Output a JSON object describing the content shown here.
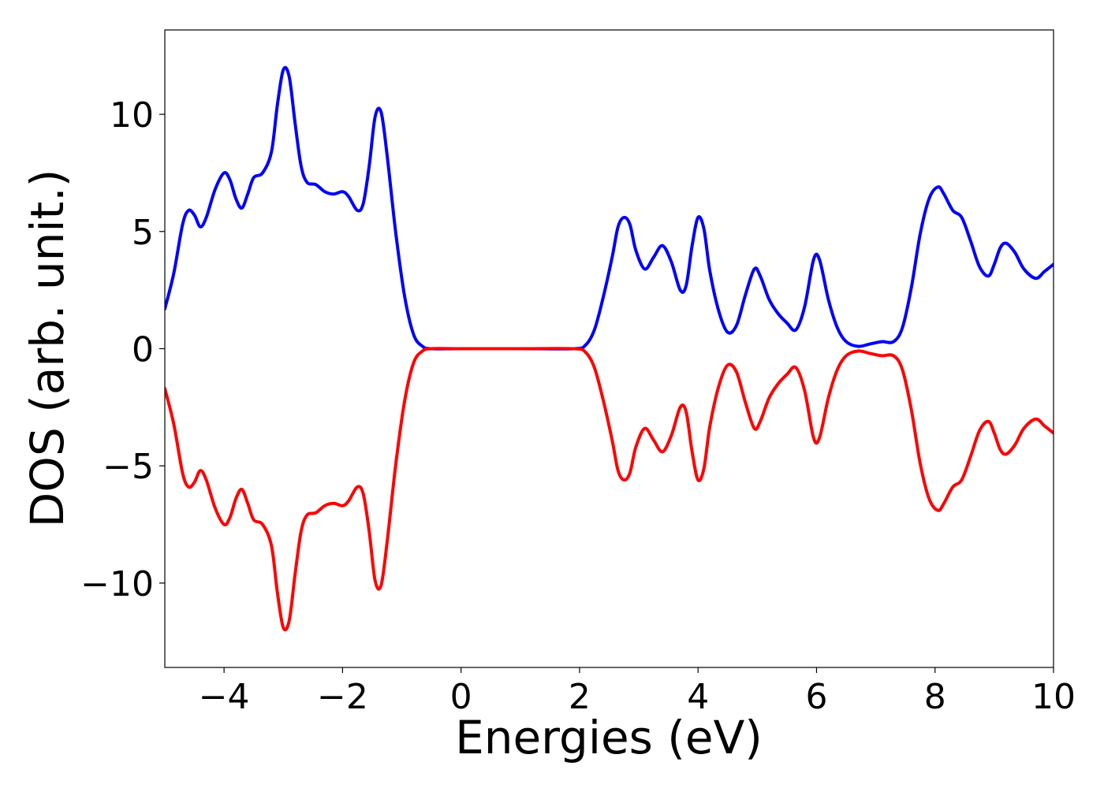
{
  "chart_data": {
    "type": "line",
    "title": "",
    "xlabel": "Energies (eV)",
    "ylabel": "DOS (arb. unit.)",
    "xlim": [
      -5,
      10
    ],
    "ylim": [
      -13.6,
      13.6
    ],
    "xticks": [
      -4,
      -2,
      0,
      2,
      4,
      6,
      8,
      10
    ],
    "xtick_labels": [
      "−4",
      "−2",
      "0",
      "2",
      "4",
      "6",
      "8",
      "10"
    ],
    "yticks": [
      -10,
      -5,
      0,
      5,
      10
    ],
    "ytick_labels": [
      "−10",
      "−5",
      "0",
      "5",
      "10"
    ],
    "grid": false,
    "legend": "none",
    "series": [
      {
        "color": "#0000ff",
        "points": [
          [
            -5.0,
            1.7
          ],
          [
            -4.85,
            3.2
          ],
          [
            -4.7,
            5.3
          ],
          [
            -4.6,
            5.9
          ],
          [
            -4.5,
            5.7
          ],
          [
            -4.4,
            5.2
          ],
          [
            -4.3,
            5.6
          ],
          [
            -4.15,
            6.8
          ],
          [
            -4.0,
            7.5
          ],
          [
            -3.9,
            7.2
          ],
          [
            -3.8,
            6.4
          ],
          [
            -3.7,
            6.0
          ],
          [
            -3.6,
            6.6
          ],
          [
            -3.5,
            7.3
          ],
          [
            -3.35,
            7.5
          ],
          [
            -3.2,
            8.4
          ],
          [
            -3.1,
            10.4
          ],
          [
            -3.0,
            11.9
          ],
          [
            -2.9,
            11.6
          ],
          [
            -2.8,
            9.6
          ],
          [
            -2.7,
            7.8
          ],
          [
            -2.6,
            7.1
          ],
          [
            -2.45,
            7.0
          ],
          [
            -2.3,
            6.7
          ],
          [
            -2.15,
            6.6
          ],
          [
            -2.0,
            6.7
          ],
          [
            -1.9,
            6.5
          ],
          [
            -1.75,
            5.9
          ],
          [
            -1.65,
            6.2
          ],
          [
            -1.55,
            7.8
          ],
          [
            -1.45,
            9.9
          ],
          [
            -1.35,
            10.1
          ],
          [
            -1.25,
            8.3
          ],
          [
            -1.1,
            4.9
          ],
          [
            -0.95,
            2.2
          ],
          [
            -0.8,
            0.6
          ],
          [
            -0.65,
            0.1
          ],
          [
            -0.5,
            0.0
          ],
          [
            0.0,
            0.0
          ],
          [
            1.0,
            0.0
          ],
          [
            1.9,
            0.0
          ],
          [
            2.1,
            0.15
          ],
          [
            2.25,
            0.8
          ],
          [
            2.4,
            2.2
          ],
          [
            2.55,
            3.9
          ],
          [
            2.65,
            5.2
          ],
          [
            2.75,
            5.6
          ],
          [
            2.85,
            5.3
          ],
          [
            2.95,
            4.2
          ],
          [
            3.1,
            3.4
          ],
          [
            3.25,
            3.9
          ],
          [
            3.4,
            4.4
          ],
          [
            3.55,
            3.7
          ],
          [
            3.7,
            2.5
          ],
          [
            3.8,
            2.7
          ],
          [
            3.9,
            4.4
          ],
          [
            4.0,
            5.6
          ],
          [
            4.1,
            5.1
          ],
          [
            4.2,
            3.3
          ],
          [
            4.35,
            1.6
          ],
          [
            4.5,
            0.7
          ],
          [
            4.65,
            1.0
          ],
          [
            4.8,
            2.3
          ],
          [
            4.95,
            3.4
          ],
          [
            5.05,
            3.1
          ],
          [
            5.2,
            2.1
          ],
          [
            5.35,
            1.5
          ],
          [
            5.5,
            1.1
          ],
          [
            5.65,
            0.8
          ],
          [
            5.8,
            1.8
          ],
          [
            5.95,
            3.8
          ],
          [
            6.05,
            3.8
          ],
          [
            6.2,
            2.1
          ],
          [
            6.35,
            0.9
          ],
          [
            6.5,
            0.3
          ],
          [
            6.7,
            0.1
          ],
          [
            6.9,
            0.2
          ],
          [
            7.1,
            0.3
          ],
          [
            7.3,
            0.3
          ],
          [
            7.45,
            0.9
          ],
          [
            7.6,
            2.6
          ],
          [
            7.75,
            4.9
          ],
          [
            7.9,
            6.4
          ],
          [
            8.05,
            6.9
          ],
          [
            8.15,
            6.6
          ],
          [
            8.3,
            5.9
          ],
          [
            8.45,
            5.6
          ],
          [
            8.6,
            4.6
          ],
          [
            8.75,
            3.5
          ],
          [
            8.9,
            3.1
          ],
          [
            9.0,
            3.6
          ],
          [
            9.1,
            4.3
          ],
          [
            9.2,
            4.5
          ],
          [
            9.35,
            4.1
          ],
          [
            9.5,
            3.4
          ],
          [
            9.7,
            3.0
          ],
          [
            9.85,
            3.3
          ],
          [
            10.0,
            3.6
          ]
        ]
      },
      {
        "color": "#ff0000",
        "points": [
          [
            -5.0,
            -1.7
          ],
          [
            -4.85,
            -3.2
          ],
          [
            -4.7,
            -5.3
          ],
          [
            -4.6,
            -5.9
          ],
          [
            -4.5,
            -5.7
          ],
          [
            -4.4,
            -5.2
          ],
          [
            -4.3,
            -5.6
          ],
          [
            -4.15,
            -6.8
          ],
          [
            -4.0,
            -7.5
          ],
          [
            -3.9,
            -7.2
          ],
          [
            -3.8,
            -6.4
          ],
          [
            -3.7,
            -6.0
          ],
          [
            -3.6,
            -6.6
          ],
          [
            -3.5,
            -7.3
          ],
          [
            -3.35,
            -7.5
          ],
          [
            -3.2,
            -8.4
          ],
          [
            -3.1,
            -10.4
          ],
          [
            -3.0,
            -11.9
          ],
          [
            -2.9,
            -11.6
          ],
          [
            -2.8,
            -9.6
          ],
          [
            -2.7,
            -7.8
          ],
          [
            -2.6,
            -7.1
          ],
          [
            -2.45,
            -7.0
          ],
          [
            -2.3,
            -6.7
          ],
          [
            -2.15,
            -6.6
          ],
          [
            -2.0,
            -6.7
          ],
          [
            -1.9,
            -6.5
          ],
          [
            -1.75,
            -5.9
          ],
          [
            -1.65,
            -6.2
          ],
          [
            -1.55,
            -7.8
          ],
          [
            -1.45,
            -9.9
          ],
          [
            -1.35,
            -10.1
          ],
          [
            -1.25,
            -8.3
          ],
          [
            -1.1,
            -4.9
          ],
          [
            -0.95,
            -2.2
          ],
          [
            -0.8,
            -0.6
          ],
          [
            -0.65,
            -0.1
          ],
          [
            -0.5,
            0.0
          ],
          [
            0.0,
            0.0
          ],
          [
            1.0,
            0.0
          ],
          [
            1.9,
            0.0
          ],
          [
            2.1,
            -0.15
          ],
          [
            2.25,
            -0.8
          ],
          [
            2.4,
            -2.2
          ],
          [
            2.55,
            -3.9
          ],
          [
            2.65,
            -5.2
          ],
          [
            2.75,
            -5.6
          ],
          [
            2.85,
            -5.3
          ],
          [
            2.95,
            -4.2
          ],
          [
            3.1,
            -3.4
          ],
          [
            3.25,
            -3.9
          ],
          [
            3.4,
            -4.4
          ],
          [
            3.55,
            -3.7
          ],
          [
            3.7,
            -2.5
          ],
          [
            3.8,
            -2.7
          ],
          [
            3.9,
            -4.4
          ],
          [
            4.0,
            -5.6
          ],
          [
            4.1,
            -5.1
          ],
          [
            4.2,
            -3.3
          ],
          [
            4.35,
            -1.6
          ],
          [
            4.5,
            -0.7
          ],
          [
            4.65,
            -1.0
          ],
          [
            4.8,
            -2.3
          ],
          [
            4.95,
            -3.4
          ],
          [
            5.05,
            -3.1
          ],
          [
            5.2,
            -2.1
          ],
          [
            5.35,
            -1.5
          ],
          [
            5.5,
            -1.1
          ],
          [
            5.65,
            -0.8
          ],
          [
            5.8,
            -1.8
          ],
          [
            5.95,
            -3.8
          ],
          [
            6.05,
            -3.8
          ],
          [
            6.2,
            -2.1
          ],
          [
            6.35,
            -0.9
          ],
          [
            6.5,
            -0.3
          ],
          [
            6.7,
            -0.1
          ],
          [
            6.9,
            -0.2
          ],
          [
            7.1,
            -0.3
          ],
          [
            7.3,
            -0.3
          ],
          [
            7.45,
            -0.9
          ],
          [
            7.6,
            -2.6
          ],
          [
            7.75,
            -4.9
          ],
          [
            7.9,
            -6.4
          ],
          [
            8.05,
            -6.9
          ],
          [
            8.15,
            -6.6
          ],
          [
            8.3,
            -5.9
          ],
          [
            8.45,
            -5.6
          ],
          [
            8.6,
            -4.6
          ],
          [
            8.75,
            -3.5
          ],
          [
            8.9,
            -3.1
          ],
          [
            9.0,
            -3.6
          ],
          [
            9.1,
            -4.3
          ],
          [
            9.2,
            -4.5
          ],
          [
            9.35,
            -4.1
          ],
          [
            9.5,
            -3.4
          ],
          [
            9.7,
            -3.0
          ],
          [
            9.85,
            -3.3
          ],
          [
            10.0,
            -3.6
          ]
        ]
      }
    ]
  }
}
